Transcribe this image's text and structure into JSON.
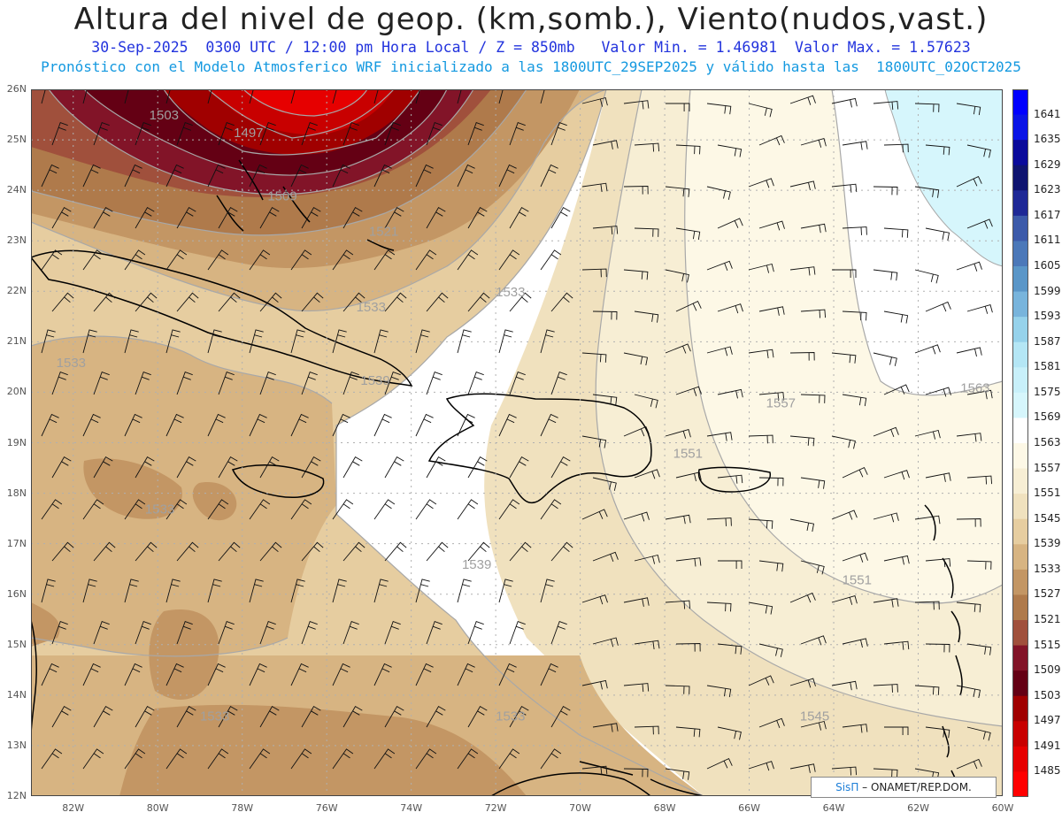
{
  "header": {
    "title": "Altura del nivel de geop. (km,somb.), Viento(nudos,vast.)",
    "subtitle": "30-Sep-2025  0300 UTC / 12:00 pm Hora Local / Z = 850mb   Valor Min. = 1.46981  Valor Max. = 1.57623",
    "forecast_note": "Pronóstico con el Modelo Atmosferico WRF inicializado a las 1800UTC_29SEP2025 y válido hasta las  1800UTC_02OCT2025"
  },
  "map": {
    "lon_range": [
      -83,
      -60
    ],
    "lat_range": [
      12,
      26
    ],
    "lat_labels": [
      "26N",
      "25N",
      "24N",
      "23N",
      "22N",
      "21N",
      "20N",
      "19N",
      "18N",
      "17N",
      "16N",
      "15N",
      "14N",
      "13N",
      "12N"
    ],
    "lon_labels": [
      "82W",
      "80W",
      "78W",
      "76W",
      "74W",
      "72W",
      "70W",
      "68W",
      "66W",
      "64W",
      "62W",
      "60W"
    ],
    "contour_labels": [
      {
        "text": "1503",
        "lon": -80.2,
        "lat": 25.4
      },
      {
        "text": "1497",
        "lon": -78.2,
        "lat": 25.05
      },
      {
        "text": "1509",
        "lon": -77.4,
        "lat": 23.8
      },
      {
        "text": "1521",
        "lon": -75.0,
        "lat": 23.1
      },
      {
        "text": "1533",
        "lon": -75.3,
        "lat": 21.6
      },
      {
        "text": "1533",
        "lon": -72.0,
        "lat": 21.9
      },
      {
        "text": "1533",
        "lon": -82.4,
        "lat": 20.5
      },
      {
        "text": "1539",
        "lon": -75.2,
        "lat": 20.15
      },
      {
        "text": "1533",
        "lon": -80.3,
        "lat": 17.6
      },
      {
        "text": "1539",
        "lon": -72.8,
        "lat": 16.5
      },
      {
        "text": "1557",
        "lon": -65.6,
        "lat": 19.7
      },
      {
        "text": "1563",
        "lon": -61.0,
        "lat": 20.0
      },
      {
        "text": "1551",
        "lon": -67.8,
        "lat": 18.7
      },
      {
        "text": "1551",
        "lon": -63.8,
        "lat": 16.2
      },
      {
        "text": "1545",
        "lon": -64.8,
        "lat": 13.5
      },
      {
        "text": "1533",
        "lon": -72.0,
        "lat": 13.5
      },
      {
        "text": "1533",
        "lon": -79.0,
        "lat": 13.5
      }
    ]
  },
  "colorbar": {
    "labels": [
      "1641",
      "1635",
      "1629",
      "1623",
      "1617",
      "1611",
      "1605",
      "1599",
      "1593",
      "1587",
      "1581",
      "1575",
      "1569",
      "1563",
      "1557",
      "1551",
      "1545",
      "1539",
      "1533",
      "1527",
      "1521",
      "1515",
      "1509",
      "1503",
      "1497",
      "1491",
      "1485"
    ],
    "colors": [
      "#0000ff",
      "#0a14e6",
      "#0a0a9b",
      "#0f1470",
      "#1e2896",
      "#3c5aaa",
      "#4b78b9",
      "#5a96c8",
      "#78b4dc",
      "#96d2eb",
      "#b4e6f5",
      "#c8f0fa",
      "#d6f6fc",
      "#ffffff",
      "#fdf8e6",
      "#f7eed4",
      "#f0e1be",
      "#e6cda0",
      "#d7b482",
      "#c39664",
      "#af7a4b",
      "#a0503c",
      "#821428",
      "#640014",
      "#a00000",
      "#c80000",
      "#e60000",
      "#ff0000"
    ]
  },
  "credit": {
    "brand": "SisΠ",
    "text": " – ONAMET/REP.DOM."
  }
}
